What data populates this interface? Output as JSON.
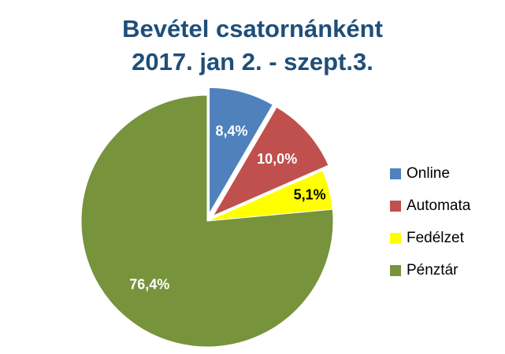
{
  "chart_data": {
    "type": "pie",
    "title": "Bevétel csatornánként",
    "subtitle": "2017. jan 2. - szept.3.",
    "slices": [
      {
        "name": "Online",
        "value": 8.4,
        "label": "8,4%",
        "color": "#4f81bd",
        "label_color": "#ffffff",
        "exploded": true
      },
      {
        "name": "Automata",
        "value": 10.0,
        "label": "10,0%",
        "color": "#c0504d",
        "label_color": "#ffffff",
        "exploded": true
      },
      {
        "name": "Fedélzet",
        "value": 5.1,
        "label": "5,1%",
        "color": "#ffff00",
        "label_color": "#000000",
        "exploded": false
      },
      {
        "name": "Pénztár",
        "value": 76.4,
        "label": "76,4%",
        "color": "#77933c",
        "label_color": "#ffffff",
        "exploded": false
      }
    ],
    "legend_position": "right"
  }
}
